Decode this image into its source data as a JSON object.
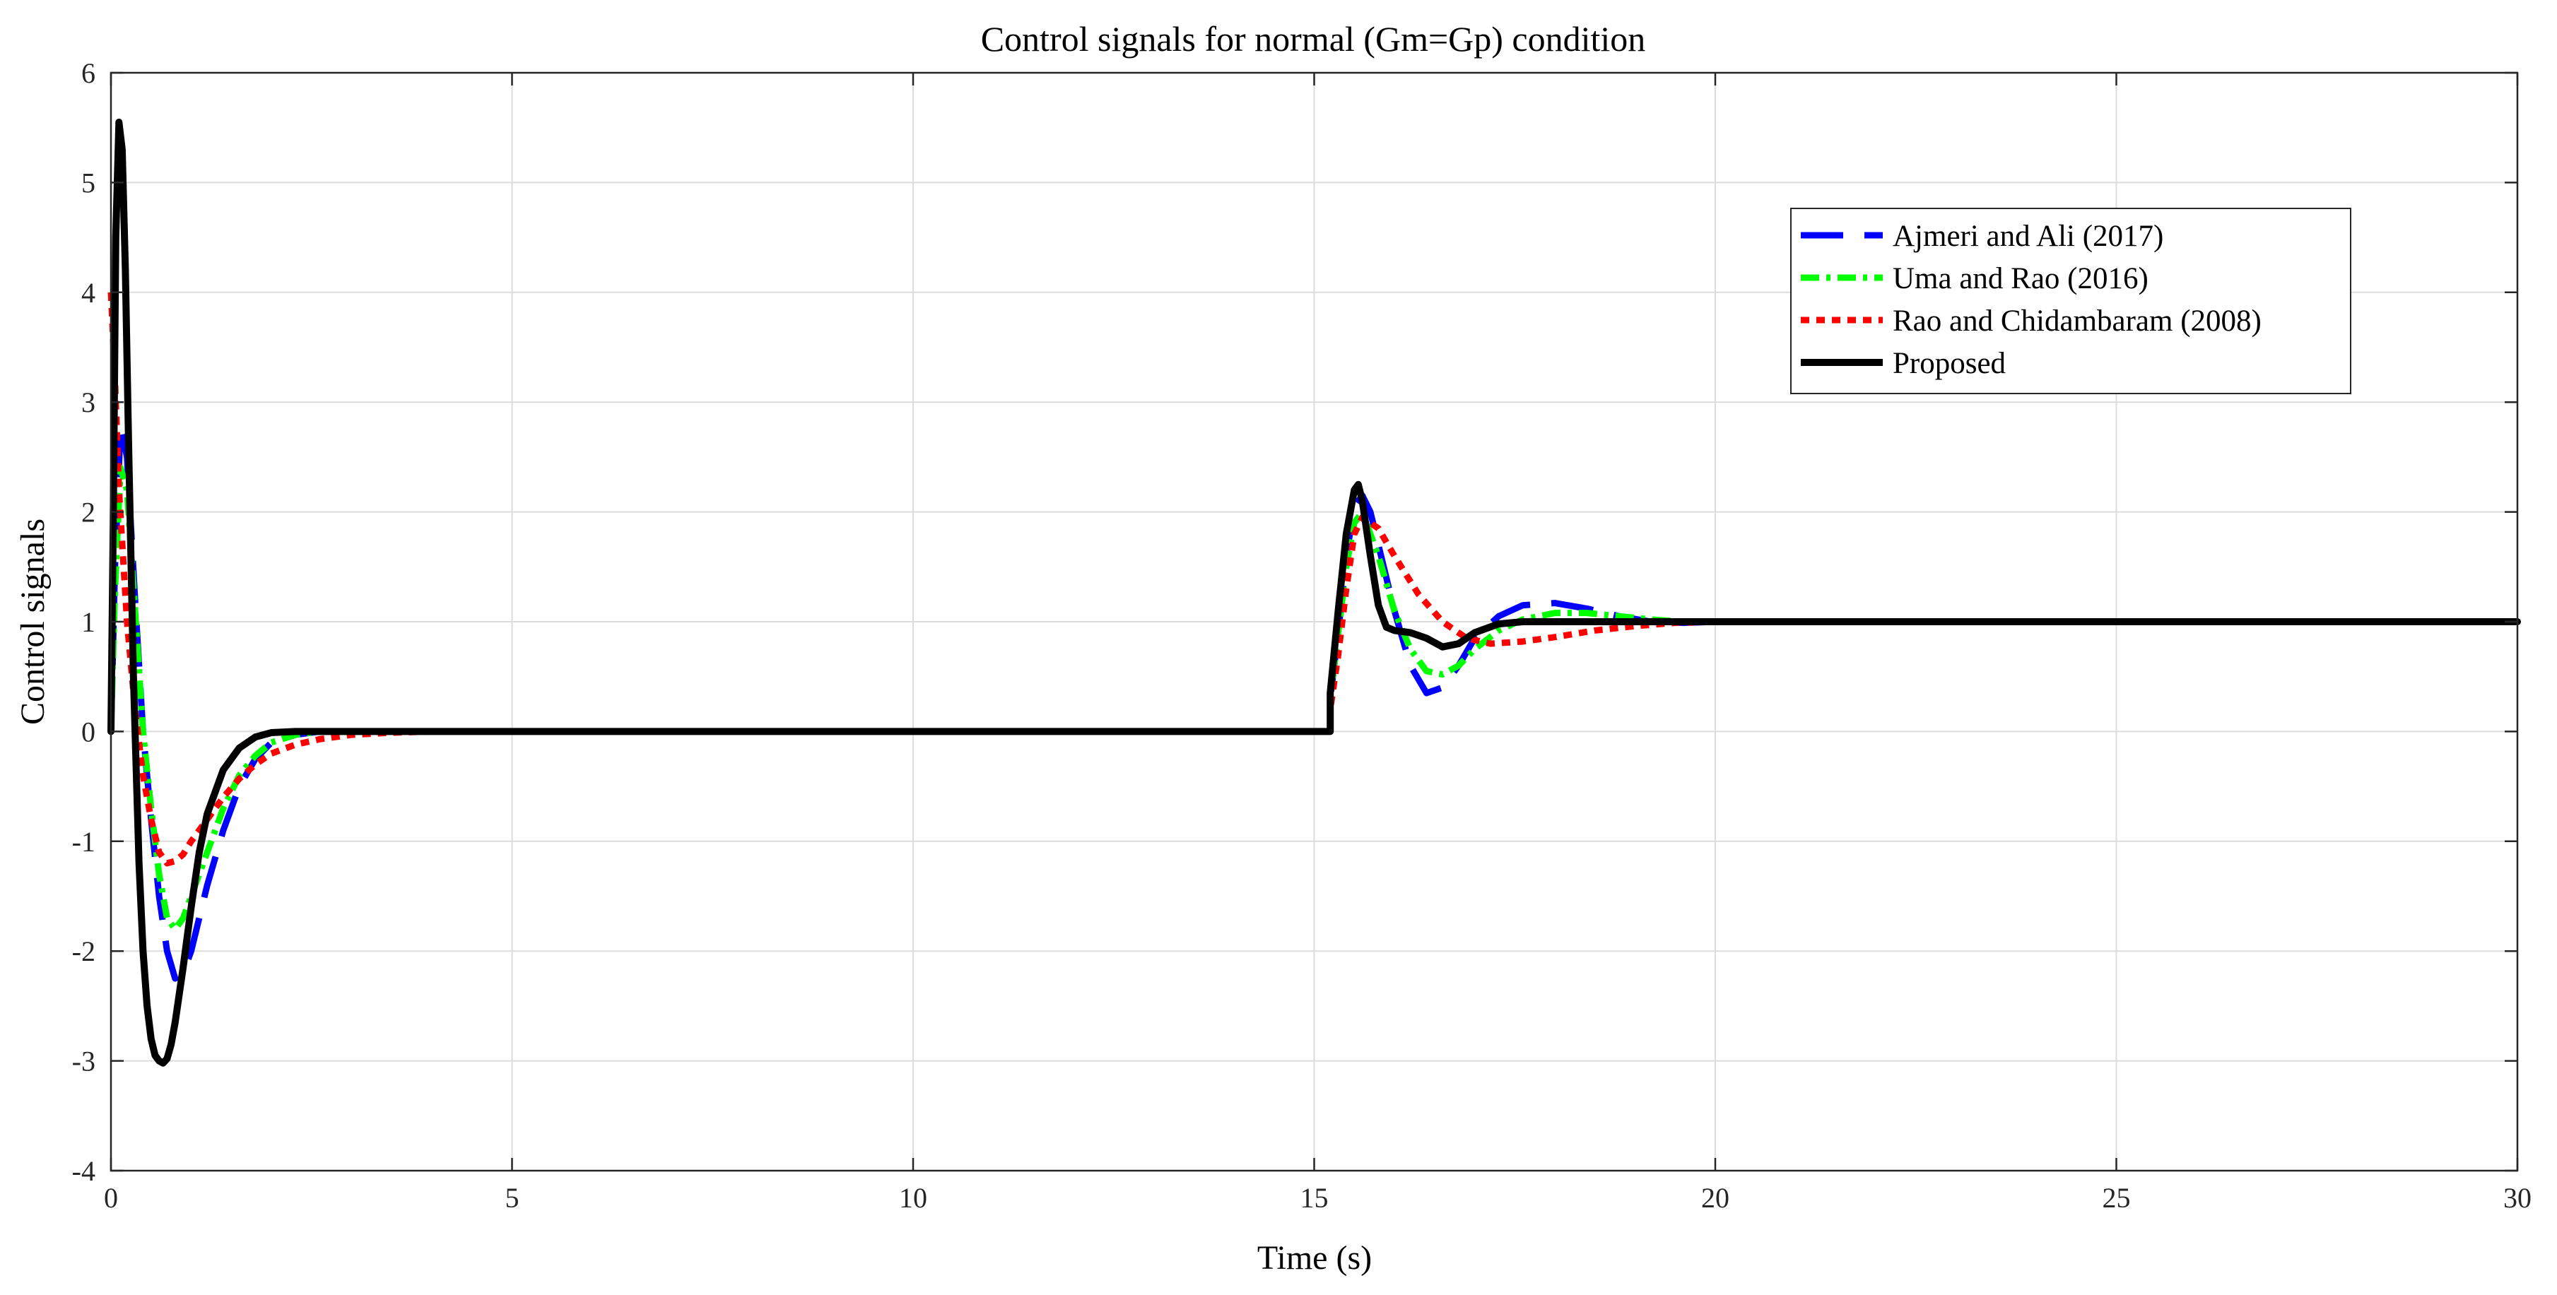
{
  "chart_data": {
    "type": "line",
    "title": "Control signals for normal (Gm=Gp) condition",
    "xlabel": "Time (s)",
    "ylabel": "Control signals",
    "xlim": [
      0,
      30
    ],
    "ylim": [
      -4,
      6
    ],
    "xticks": [
      0,
      5,
      10,
      15,
      20,
      25,
      30
    ],
    "yticks": [
      6,
      5,
      4,
      3,
      2,
      1,
      0,
      -1,
      -2,
      -3,
      -4
    ],
    "grid": true,
    "legend_position": "top-right",
    "series": [
      {
        "name": "Ajmeri and Ali (2017)",
        "color": "#0000ff",
        "style": "dashed",
        "x": [
          0,
          0.05,
          0.12,
          0.2,
          0.3,
          0.4,
          0.5,
          0.6,
          0.7,
          0.8,
          0.9,
          1.0,
          1.2,
          1.4,
          1.6,
          1.8,
          2.0,
          2.3,
          2.6,
          3.0,
          15.2,
          15.2,
          15.3,
          15.4,
          15.5,
          15.6,
          15.7,
          15.8,
          16.0,
          16.2,
          16.4,
          16.6,
          16.8,
          17.0,
          17.3,
          17.6,
          18.0,
          18.4,
          18.8,
          19.2,
          19.6,
          20.0,
          30
        ],
        "y": [
          0,
          1.5,
          2.8,
          2.5,
          1.2,
          0.0,
          -0.8,
          -1.5,
          -2.0,
          -2.25,
          -2.2,
          -2.0,
          -1.4,
          -0.9,
          -0.5,
          -0.25,
          -0.1,
          -0.03,
          0,
          0,
          0,
          0.3,
          0.9,
          1.6,
          2.05,
          2.15,
          2.0,
          1.7,
          1.1,
          0.6,
          0.35,
          0.4,
          0.6,
          0.85,
          1.05,
          1.15,
          1.17,
          1.12,
          1.05,
          1.0,
          0.99,
          1.0,
          1.0
        ]
      },
      {
        "name": "Uma and Rao (2016)",
        "color": "#00ff00",
        "style": "dashdot",
        "x": [
          0,
          0.05,
          0.12,
          0.2,
          0.3,
          0.4,
          0.5,
          0.6,
          0.7,
          0.8,
          0.9,
          1.0,
          1.2,
          1.4,
          1.6,
          1.8,
          2.0,
          2.3,
          2.6,
          3.0,
          15.2,
          15.2,
          15.3,
          15.4,
          15.5,
          15.6,
          15.8,
          16.0,
          16.2,
          16.4,
          16.6,
          16.8,
          17.0,
          17.3,
          17.6,
          18.0,
          18.4,
          18.8,
          19.2,
          19.6,
          20.0,
          30
        ],
        "y": [
          0,
          1.3,
          2.4,
          2.2,
          1.1,
          0.0,
          -0.7,
          -1.3,
          -1.7,
          -1.8,
          -1.7,
          -1.5,
          -1.1,
          -0.7,
          -0.4,
          -0.22,
          -0.1,
          -0.03,
          0,
          0,
          0,
          0.3,
          0.9,
          1.5,
          1.9,
          2.0,
          1.6,
          1.1,
          0.75,
          0.55,
          0.52,
          0.6,
          0.75,
          0.92,
          1.02,
          1.08,
          1.08,
          1.05,
          1.02,
          1.0,
          1.0,
          1.0
        ]
      },
      {
        "name": "Rao and Chidambaram (2008)",
        "color": "#ff0000",
        "style": "dotted",
        "x": [
          0,
          0.05,
          0.1,
          0.2,
          0.3,
          0.4,
          0.5,
          0.6,
          0.7,
          0.8,
          0.9,
          1.0,
          1.2,
          1.4,
          1.6,
          1.8,
          2.0,
          2.3,
          2.6,
          3.0,
          3.5,
          4.0,
          4.5,
          15.2,
          15.2,
          15.3,
          15.4,
          15.5,
          15.6,
          15.8,
          16.0,
          16.3,
          16.6,
          16.9,
          17.2,
          17.6,
          18.0,
          18.5,
          19.0,
          19.5,
          20.0,
          30
        ],
        "y": [
          4.0,
          3.2,
          2.2,
          1.0,
          0.2,
          -0.4,
          -0.8,
          -1.1,
          -1.2,
          -1.18,
          -1.12,
          -1.0,
          -0.8,
          -0.6,
          -0.43,
          -0.3,
          -0.2,
          -0.12,
          -0.07,
          -0.03,
          -0.01,
          0,
          0,
          0,
          0.2,
          0.7,
          1.3,
          1.8,
          1.95,
          1.85,
          1.6,
          1.25,
          1.0,
          0.85,
          0.8,
          0.82,
          0.86,
          0.92,
          0.96,
          0.99,
          1.0,
          1.0
        ]
      },
      {
        "name": "Proposed",
        "color": "#000000",
        "style": "solid",
        "x": [
          0,
          0.03,
          0.06,
          0.1,
          0.14,
          0.18,
          0.22,
          0.28,
          0.35,
          0.4,
          0.45,
          0.5,
          0.55,
          0.6,
          0.65,
          0.7,
          0.75,
          0.8,
          0.9,
          1.0,
          1.1,
          1.2,
          1.4,
          1.6,
          1.8,
          2.0,
          2.3,
          2.6,
          3.0,
          15.2,
          15.2,
          15.3,
          15.4,
          15.5,
          15.55,
          15.6,
          15.7,
          15.8,
          15.9,
          16.0,
          16.2,
          16.4,
          16.6,
          16.8,
          17.0,
          17.3,
          17.6,
          18.0,
          18.5,
          19.0,
          30
        ],
        "y": [
          0,
          2.0,
          4.5,
          5.55,
          5.3,
          4.2,
          2.6,
          0.5,
          -1.2,
          -2.0,
          -2.5,
          -2.8,
          -2.95,
          -3.0,
          -3.02,
          -2.98,
          -2.85,
          -2.65,
          -2.15,
          -1.6,
          -1.1,
          -0.75,
          -0.35,
          -0.15,
          -0.05,
          -0.01,
          0,
          0,
          0,
          0,
          0.35,
          1.1,
          1.8,
          2.2,
          2.25,
          2.1,
          1.6,
          1.15,
          0.95,
          0.92,
          0.9,
          0.85,
          0.77,
          0.8,
          0.9,
          0.98,
          1.0,
          1.0,
          1.0,
          1.0,
          1.0
        ]
      }
    ]
  }
}
